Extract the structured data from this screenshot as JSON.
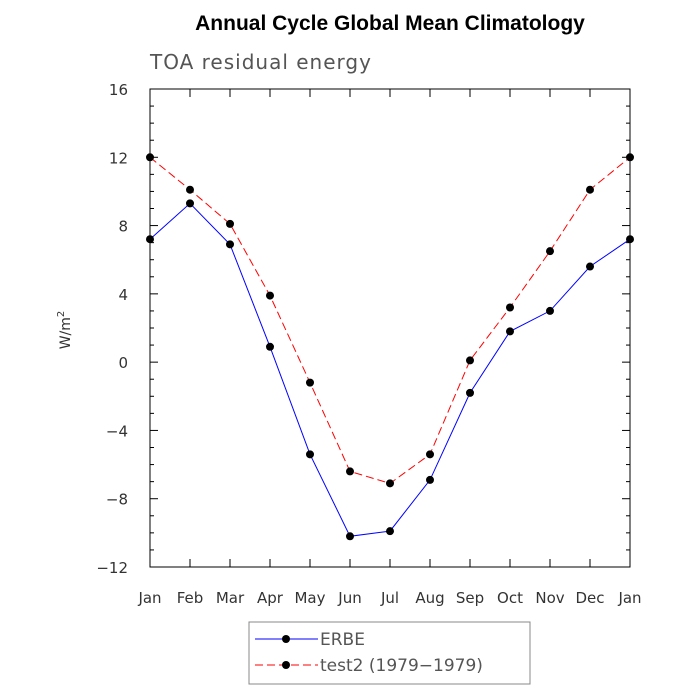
{
  "chart_data": {
    "type": "line",
    "title": "Annual Cycle Global Mean Climatology",
    "subtitle": "TOA residual energy",
    "xlabel": "",
    "ylabel": "W/m",
    "ylabel_superscript": "2",
    "categories": [
      "Jan",
      "Feb",
      "Mar",
      "Apr",
      "May",
      "Jun",
      "Jul",
      "Aug",
      "Sep",
      "Oct",
      "Nov",
      "Dec",
      "Jan"
    ],
    "ylim": [
      -12,
      16
    ],
    "yticks": [
      16,
      12,
      8,
      4,
      0,
      -4,
      -8,
      -12
    ],
    "ytick_labels": [
      "16",
      "12",
      "8",
      "4",
      "0",
      "−4",
      "−8",
      "−12"
    ],
    "grid": false,
    "legend_position": "bottom-center",
    "series": [
      {
        "name": "ERBE",
        "color": "#0000ff",
        "style": "solid",
        "values": [
          7.2,
          9.3,
          6.9,
          0.9,
          -5.4,
          -10.2,
          -9.9,
          -6.9,
          -1.8,
          1.8,
          3.0,
          5.6,
          7.2
        ]
      },
      {
        "name": "test2 (1979−1979)",
        "color": "#ff0000",
        "style": "dashed",
        "values": [
          12.0,
          10.1,
          8.1,
          3.9,
          -1.2,
          -6.4,
          -7.1,
          -5.4,
          0.1,
          3.2,
          6.5,
          10.1,
          12.0
        ]
      }
    ]
  }
}
